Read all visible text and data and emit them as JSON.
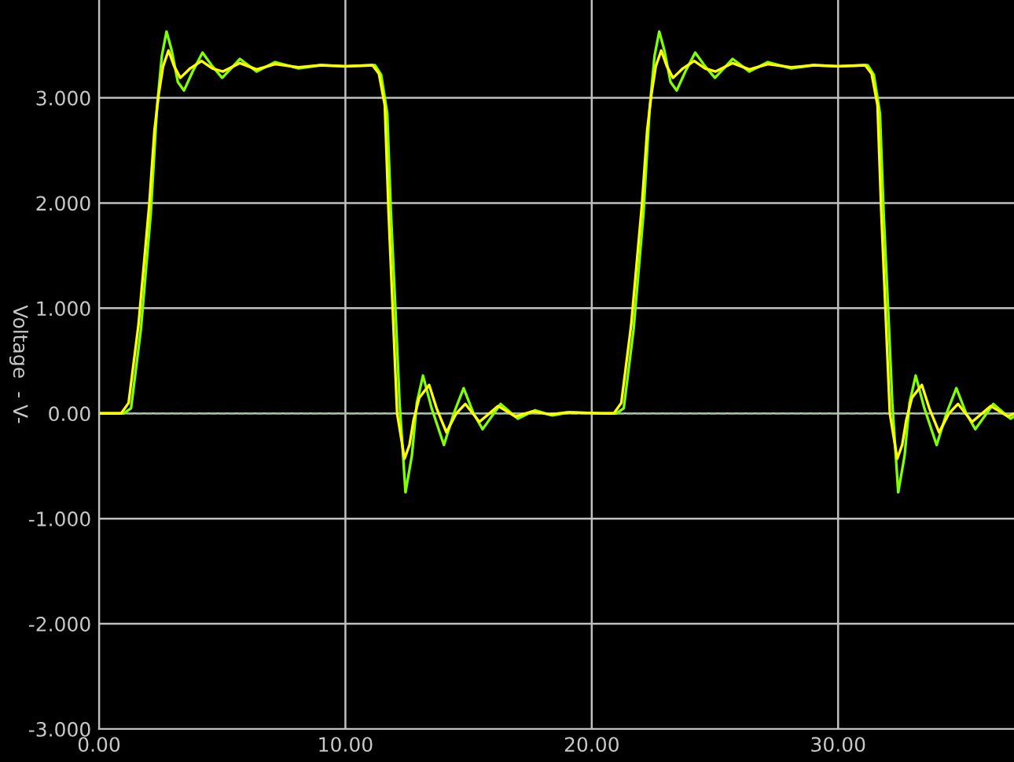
{
  "chart_data": {
    "type": "line",
    "ylabel": "Voltage  - V-",
    "xlim": [
      0,
      37.14
    ],
    "ylim": [
      -3,
      3.93
    ],
    "xticks": [
      {
        "value": 0,
        "label": "0.00"
      },
      {
        "value": 10,
        "label": "10.00"
      },
      {
        "value": 20,
        "label": "20.00"
      },
      {
        "value": 30,
        "label": "30.00"
      }
    ],
    "yticks": [
      {
        "value": -3,
        "label": "-3.000"
      },
      {
        "value": -2,
        "label": "-2.000"
      },
      {
        "value": -1,
        "label": "-1.000"
      },
      {
        "value": 0,
        "label": "0.00"
      },
      {
        "value": 1,
        "label": "1.000"
      },
      {
        "value": 2,
        "label": "2.000"
      },
      {
        "value": 3,
        "label": "3.000"
      }
    ],
    "grid": true,
    "legend": false,
    "marker": "none",
    "line_style": "solid",
    "ref_lines": [
      {
        "axis": "y",
        "value": 0,
        "color": "#8fbf8f",
        "line_style": "dashed"
      }
    ],
    "series": [
      {
        "color": "#80ff00",
        "x": [
          0,
          1.0,
          1.3,
          1.7,
          2.1,
          2.35,
          2.55,
          2.74,
          2.95,
          3.2,
          3.45,
          3.8,
          4.2,
          4.6,
          5.0,
          5.72,
          6.4,
          7.15,
          8.1,
          9.0,
          10.0,
          11.2,
          11.45,
          11.7,
          11.85,
          12.05,
          12.2,
          12.44,
          12.7,
          12.9,
          13.15,
          13.5,
          14.0,
          14.4,
          14.8,
          15.2,
          15.57,
          16.3,
          17.0,
          17.7,
          18.4,
          19.1,
          20.5,
          21.0,
          21.3,
          21.7,
          22.1,
          22.35,
          22.55,
          22.74,
          22.95,
          23.2,
          23.45,
          23.8,
          24.2,
          24.6,
          25.0,
          25.72,
          26.4,
          27.15,
          28.1,
          29.0,
          30.0,
          31.2,
          31.45,
          31.7,
          31.85,
          32.05,
          32.2,
          32.44,
          32.7,
          32.9,
          33.15,
          33.5,
          34.0,
          34.4,
          34.8,
          35.2,
          35.57,
          36.3,
          37.0,
          37.14
        ],
        "values": [
          0,
          0,
          0.05,
          0.8,
          1.9,
          2.9,
          3.4,
          3.63,
          3.45,
          3.15,
          3.07,
          3.25,
          3.43,
          3.3,
          3.19,
          3.37,
          3.25,
          3.34,
          3.28,
          3.31,
          3.3,
          3.31,
          3.22,
          2.85,
          1.9,
          0.9,
          0.1,
          -0.75,
          -0.4,
          0.1,
          0.36,
          0.05,
          -0.3,
          0.0,
          0.24,
          0.0,
          -0.15,
          0.09,
          -0.05,
          0.03,
          -0.02,
          0.01,
          0,
          0,
          0.05,
          0.8,
          1.9,
          2.9,
          3.4,
          3.63,
          3.45,
          3.15,
          3.07,
          3.25,
          3.43,
          3.3,
          3.19,
          3.37,
          3.25,
          3.34,
          3.28,
          3.31,
          3.3,
          3.31,
          3.22,
          2.85,
          1.9,
          0.9,
          0.1,
          -0.75,
          -0.4,
          0.1,
          0.36,
          0.05,
          -0.3,
          0.0,
          0.24,
          0.0,
          -0.15,
          0.09,
          -0.05,
          -0.03
        ]
      },
      {
        "color": "#ffff00",
        "x": [
          0,
          0.9,
          1.2,
          1.6,
          2.04,
          2.25,
          2.42,
          2.6,
          2.82,
          3.05,
          3.3,
          3.7,
          4.16,
          4.6,
          5.03,
          5.72,
          6.4,
          7.15,
          8.1,
          9.0,
          10.0,
          11.1,
          11.36,
          11.6,
          11.75,
          11.93,
          12.1,
          12.4,
          12.6,
          12.77,
          13.0,
          13.4,
          13.7,
          14.1,
          14.5,
          14.87,
          15.44,
          16.2,
          16.9,
          17.6,
          18.3,
          19.0,
          20.5,
          20.9,
          21.2,
          21.6,
          22.04,
          22.25,
          22.42,
          22.6,
          22.82,
          23.05,
          23.3,
          23.7,
          24.16,
          24.6,
          25.03,
          25.72,
          26.4,
          27.15,
          28.1,
          29.0,
          30.0,
          31.1,
          31.36,
          31.6,
          31.75,
          31.93,
          32.1,
          32.4,
          32.6,
          32.77,
          33.0,
          33.4,
          33.7,
          34.1,
          34.5,
          34.87,
          35.44,
          36.2,
          36.9,
          37.14
        ],
        "values": [
          0,
          0,
          0.1,
          0.84,
          1.99,
          2.69,
          3.03,
          3.3,
          3.45,
          3.3,
          3.19,
          3.28,
          3.35,
          3.28,
          3.25,
          3.33,
          3.27,
          3.32,
          3.29,
          3.31,
          3.3,
          3.31,
          3.23,
          2.93,
          1.93,
          0.94,
          0,
          -0.43,
          -0.3,
          -0.06,
          0.15,
          0.27,
          0.05,
          -0.18,
          0.0,
          0.09,
          -0.08,
          0.07,
          -0.03,
          0.02,
          -0.01,
          0.01,
          0,
          0,
          0.1,
          0.84,
          1.99,
          2.69,
          3.03,
          3.3,
          3.45,
          3.3,
          3.19,
          3.28,
          3.35,
          3.28,
          3.25,
          3.33,
          3.27,
          3.32,
          3.29,
          3.31,
          3.3,
          3.31,
          3.23,
          2.93,
          1.93,
          0.94,
          0,
          -0.43,
          -0.3,
          -0.06,
          0.15,
          0.27,
          0.05,
          -0.18,
          0.0,
          0.09,
          -0.08,
          0.07,
          -0.03,
          0.0
        ]
      }
    ]
  }
}
